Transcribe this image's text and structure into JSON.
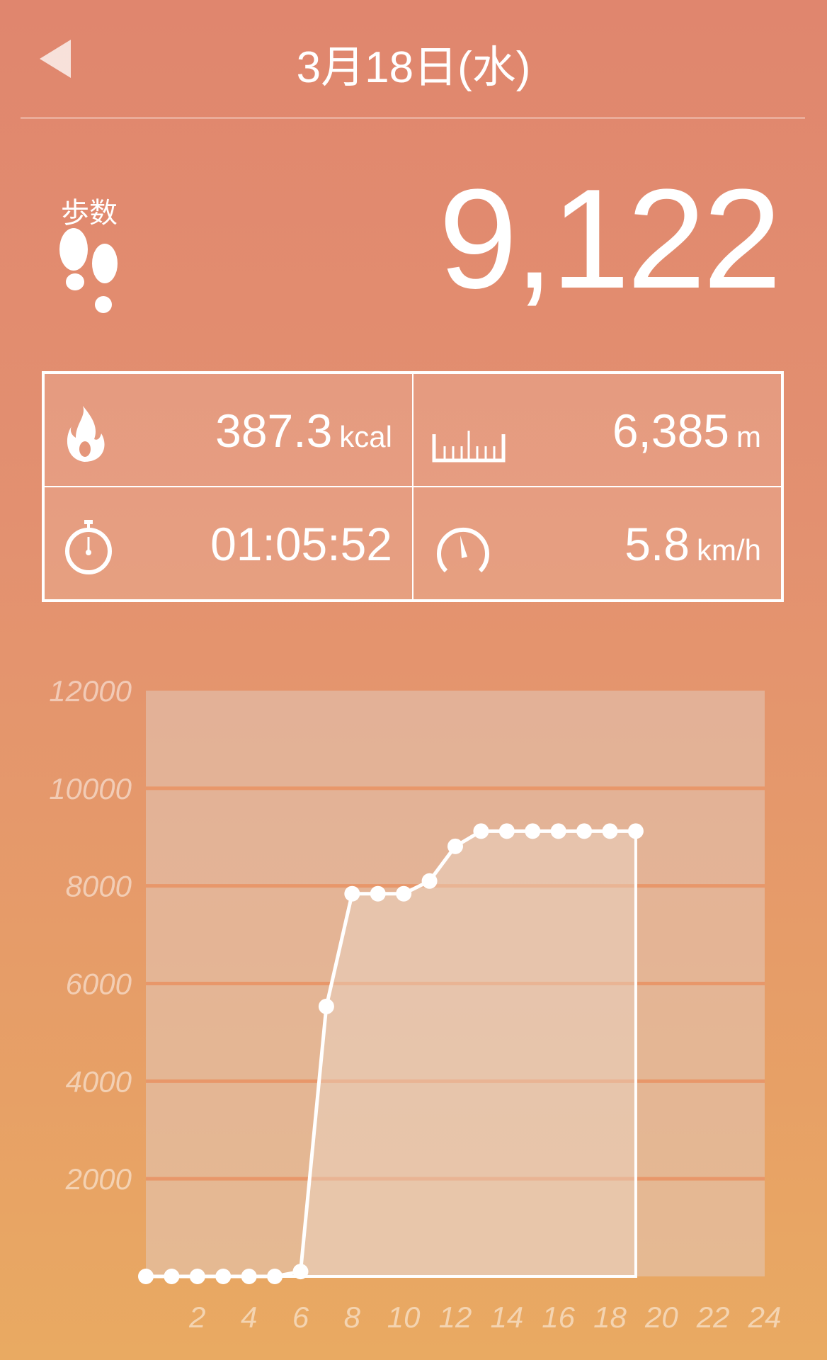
{
  "header": {
    "title": "3月18日(水)",
    "back_icon": "back-triangle-icon"
  },
  "steps": {
    "label": "歩数",
    "value": "9,122",
    "icon": "footprints-icon"
  },
  "stats": [
    {
      "icon": "flame-icon",
      "value": "387.3",
      "unit": "kcal"
    },
    {
      "icon": "ruler-icon",
      "value": "6,385",
      "unit": "m"
    },
    {
      "icon": "stopwatch-icon",
      "value": "01:05:52",
      "unit": ""
    },
    {
      "icon": "speedometer-icon",
      "value": "5.8",
      "unit": "km/h"
    }
  ],
  "colors": {
    "background_top": "#e0866e",
    "background_bottom": "#e9aa62",
    "line": "#ffffff"
  },
  "chart_data": {
    "type": "area",
    "x": [
      0,
      1,
      2,
      3,
      4,
      5,
      6,
      7,
      8,
      9,
      10,
      11,
      12,
      13,
      14,
      15,
      16,
      17,
      18,
      19
    ],
    "values": [
      0,
      0,
      0,
      0,
      0,
      0,
      100,
      5530,
      7840,
      7840,
      7840,
      8100,
      8810,
      9122,
      9122,
      9122,
      9122,
      9122,
      9122,
      9122
    ],
    "xlim": [
      0,
      24
    ],
    "ylim": [
      0,
      12000
    ],
    "x_ticks": [
      "2",
      "4",
      "6",
      "8",
      "10",
      "12",
      "14",
      "16",
      "18",
      "20",
      "22",
      "24"
    ],
    "y_ticks": [
      "12000",
      "10000",
      "8000",
      "6000",
      "4000",
      "2000"
    ],
    "grid": true
  }
}
